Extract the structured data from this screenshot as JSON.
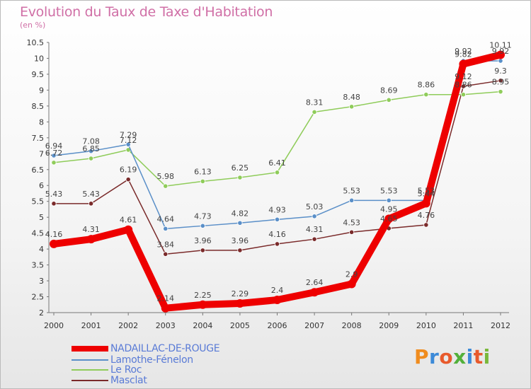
{
  "title": "Evolution du Taux de Taxe d'Habitation",
  "subtitle": "(en %)",
  "logo": [
    "P",
    "r",
    "o",
    "x",
    "i",
    "t",
    "i"
  ],
  "colors": {
    "title": "#d06fa6",
    "legend_text": "#5a7bd6",
    "logo": [
      "#f08c1e",
      "#3c8ad8",
      "#e85a2c",
      "#52b03a",
      "#3c8ad8",
      "#e85a2c",
      "#7ab83a"
    ]
  },
  "chart_data": {
    "type": "line",
    "title": "Evolution du Taux de Taxe d'Habitation",
    "subtitle": "(en %)",
    "x": [
      "2000",
      "2001",
      "2002",
      "2003",
      "2004",
      "2005",
      "2006",
      "2007",
      "2008",
      "2009",
      "2010",
      "2011",
      "2012"
    ],
    "ylim": [
      2,
      10.5
    ],
    "yticks": [
      "2",
      "2.5",
      "3",
      "3.5",
      "4",
      "4.5",
      "5",
      "5.5",
      "6",
      "6.5",
      "7",
      "7.5",
      "8",
      "8.5",
      "9",
      "9.5",
      "10",
      "10.5"
    ],
    "grid": false,
    "legend_position": "bottom-left",
    "series": [
      {
        "name": "NADAILLAC-DE-ROUGE",
        "color": "#ee0000",
        "values": [
          4.16,
          4.31,
          4.61,
          2.14,
          2.25,
          2.29,
          2.4,
          2.64,
          2.9,
          4.95,
          5.44,
          9.82,
          10.11
        ],
        "labels": [
          "4.16",
          "4.31",
          "4.61",
          "2.14",
          "2.25",
          "2.29",
          "2.4",
          "2.64",
          "2.9",
          "4.95",
          "5.44",
          "9.82",
          "10.11"
        ]
      },
      {
        "name": "Lamothe-Fénelon",
        "color": "#5a8fc8",
        "values": [
          6.94,
          7.08,
          7.29,
          4.64,
          4.73,
          4.82,
          4.93,
          5.03,
          5.53,
          5.53,
          5.53,
          9.92,
          9.92
        ],
        "labels": [
          "6.94",
          "7.08",
          "7.29",
          "4.64",
          "4.73",
          "4.82",
          "4.93",
          "5.03",
          "5.53",
          "5.53",
          "5.53",
          "9.92",
          "9.92"
        ]
      },
      {
        "name": "Le Roc",
        "color": "#8fcc5a",
        "values": [
          6.72,
          6.85,
          7.12,
          5.98,
          6.13,
          6.25,
          6.41,
          8.31,
          8.48,
          8.69,
          8.86,
          8.86,
          8.95
        ],
        "labels": [
          "6.72",
          "6.85",
          "7.12",
          "5.98",
          "6.13",
          "6.25",
          "6.41",
          "8.31",
          "8.48",
          "8.69",
          "8.86",
          "8.86",
          "8.95"
        ]
      },
      {
        "name": "Masclat",
        "color": "#7a2a2a",
        "values": [
          5.43,
          5.43,
          6.19,
          3.84,
          3.96,
          3.96,
          4.16,
          4.31,
          4.53,
          4.65,
          4.76,
          9.12,
          9.3
        ],
        "labels": [
          "5.43",
          "5.43",
          "6.19",
          "3.84",
          "3.96",
          "3.96",
          "4.16",
          "4.31",
          "4.53",
          "4.65",
          "4.76",
          "9.12",
          "9.3"
        ]
      }
    ]
  }
}
